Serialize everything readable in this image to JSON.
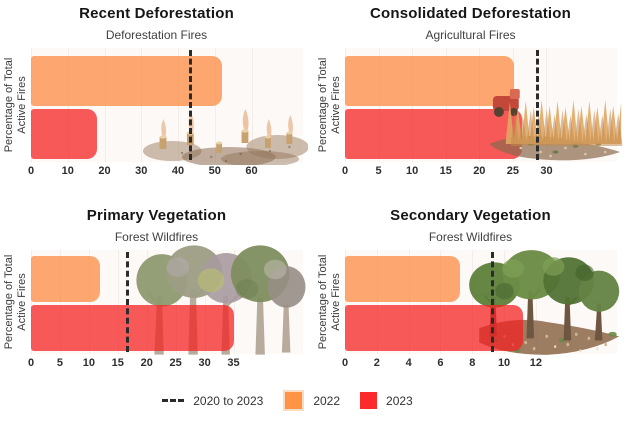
{
  "figure_title": "",
  "ylabel_lines": {
    "line1": "Percentage of Total",
    "line2": "Active Fires"
  },
  "legend": {
    "position": "bottom",
    "dash_label": "2020 to 2023",
    "label_2022": "2022",
    "label_2023": "2023"
  },
  "colors": {
    "bar_2022": "rgba(252,138,66,0.75)",
    "bar_2023": "rgba(243,35,35,0.75)",
    "legend_2022": "#FF9447",
    "legend_2023": "#FB2B2B",
    "avg_line": "#2b2b2b",
    "plot_background": "#fdf9f7",
    "title_text": "#161616",
    "subtitle_text": "#414141",
    "tick_text": "#2e2e2e"
  },
  "chart_data": [
    {
      "type": "bar",
      "orientation": "horizontal",
      "title": "Recent Deforestation",
      "subtitle": "Deforestation Fires",
      "ylabel": "Percentage of Total Active Fires",
      "categories": [
        "2022",
        "2023"
      ],
      "values": [
        52,
        18
      ],
      "avg_2020_to_2023": 43,
      "xticks": [
        0,
        10,
        20,
        30,
        40,
        50,
        60
      ],
      "xlim": [
        0,
        74
      ],
      "grid": "faint-vertical",
      "illustration": "burned tree stumps with smoke on cleared land"
    },
    {
      "type": "bar",
      "orientation": "horizontal",
      "title": "Consolidated Deforestation",
      "subtitle": "Agricultural Fires",
      "ylabel": "Percentage of Total Active Fires",
      "categories": [
        "2022",
        "2023"
      ],
      "values": [
        25.2,
        26.3
      ],
      "avg_2020_to_2023": 28.5,
      "xticks": [
        0,
        5,
        10,
        15,
        20,
        25,
        30
      ],
      "xlim": [
        0,
        40.5
      ],
      "grid": "faint-vertical",
      "illustration": "wheat crops and tractor on farm field"
    },
    {
      "type": "bar",
      "orientation": "horizontal",
      "title": "Primary Vegetation",
      "subtitle": "Forest Wildfires",
      "ylabel": "Percentage of Total Active Fires",
      "categories": [
        "2022",
        "2023"
      ],
      "values": [
        12,
        35
      ],
      "avg_2020_to_2023": 16.5,
      "xticks": [
        0,
        5,
        10,
        15,
        20,
        25,
        30,
        35
      ],
      "xlim": [
        0,
        47
      ],
      "grid": "faint-vertical",
      "illustration": "mature forest trees with muted green-gray foliage"
    },
    {
      "type": "bar",
      "orientation": "horizontal",
      "title": "Secondary Vegetation",
      "subtitle": "Forest Wildfires",
      "ylabel": "Percentage of Total Active Fires",
      "categories": [
        "2022",
        "2023"
      ],
      "values": [
        7.2,
        11.2
      ],
      "avg_2020_to_2023": 9.2,
      "xticks": [
        0,
        2,
        4,
        6,
        8,
        10,
        12
      ],
      "xlim": [
        0,
        17.1
      ],
      "grid": "faint-vertical",
      "illustration": "green regrowth trees over brown leaf litter"
    }
  ]
}
